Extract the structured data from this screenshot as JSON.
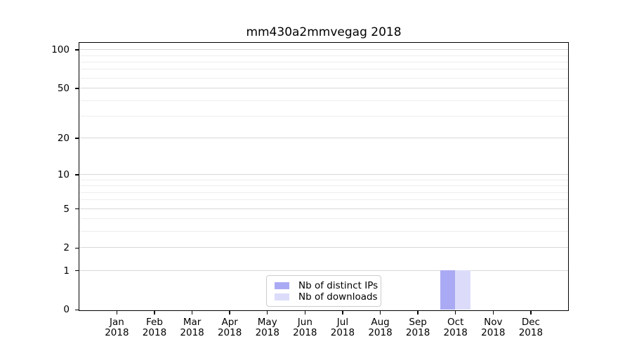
{
  "chart_data": {
    "type": "bar",
    "title": "mm430a2mmvegag 2018",
    "categories": [
      "Jan",
      "Feb",
      "Mar",
      "Apr",
      "May",
      "Jun",
      "Jul",
      "Aug",
      "Sep",
      "Oct",
      "Nov",
      "Dec"
    ],
    "category_year_line": "2018",
    "series": [
      {
        "name": "Nb of distinct IPs",
        "color": "#aaaaf4",
        "values": [
          0,
          0,
          0,
          0,
          0,
          0,
          0,
          0,
          0,
          1,
          0,
          0
        ]
      },
      {
        "name": "Nb of downloads",
        "color": "#dcdcfa",
        "values": [
          0,
          0,
          0,
          0,
          0,
          0,
          0,
          0,
          0,
          1,
          0,
          0
        ]
      }
    ],
    "xlabel": "",
    "ylabel": "",
    "yscale": "log1p",
    "ylim": [
      0,
      113
    ],
    "y_major_ticks": [
      0,
      1,
      2,
      5,
      10,
      20,
      50,
      100
    ],
    "y_minor_ticks": [
      3,
      4,
      6,
      7,
      8,
      9,
      30,
      40,
      60,
      70,
      80,
      90
    ],
    "grid": "horizontal",
    "legend_position": "lower-center",
    "colors": {
      "major_grid": "#d8d8d8",
      "minor_grid": "#ededed",
      "spine": "#000000",
      "text": "#000000",
      "background": "#ffffff"
    }
  }
}
